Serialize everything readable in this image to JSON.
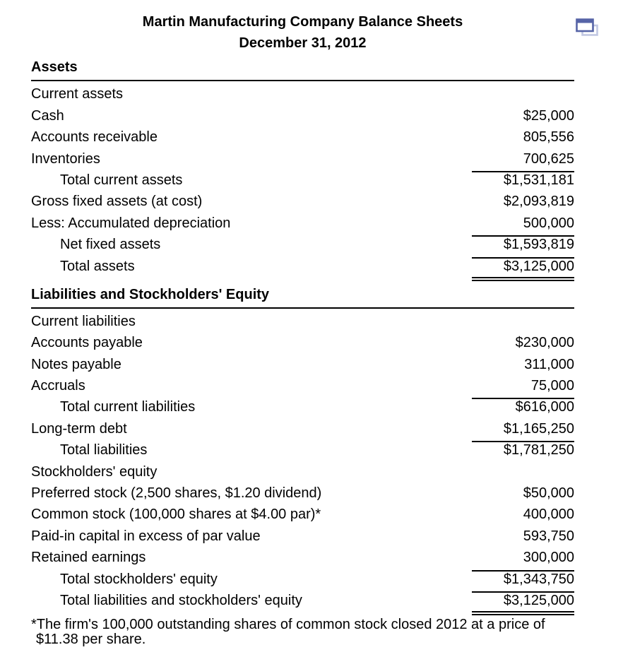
{
  "page": {
    "title": "Martin Manufacturing Company Balance Sheets",
    "subtitle": "December 31, 2012"
  },
  "icons": {
    "top_right": "copy-window-icon",
    "front_color": "#5664a7",
    "back_color": "#c2c8e2"
  },
  "sections": [
    {
      "heading": "Assets",
      "rows": [
        {
          "label": "Current assets",
          "value": "",
          "indent": false,
          "rule_above": false,
          "double_rule_below": false
        },
        {
          "label": "Cash",
          "value": "$25,000",
          "indent": false,
          "rule_above": false,
          "double_rule_below": false
        },
        {
          "label": "Accounts receivable",
          "value": "805,556",
          "indent": false,
          "rule_above": false,
          "double_rule_below": false
        },
        {
          "label": "Inventories",
          "value": "700,625",
          "indent": false,
          "rule_above": false,
          "double_rule_below": false
        },
        {
          "label": "Total current assets",
          "value": "$1,531,181",
          "indent": true,
          "rule_above": true,
          "double_rule_below": false
        },
        {
          "label": "Gross fixed assets (at cost)",
          "value": "$2,093,819",
          "indent": false,
          "rule_above": false,
          "double_rule_below": false
        },
        {
          "label": "Less: Accumulated depreciation",
          "value": "500,000",
          "indent": false,
          "rule_above": false,
          "double_rule_below": false
        },
        {
          "label": "Net fixed assets",
          "value": "$1,593,819",
          "indent": true,
          "rule_above": true,
          "double_rule_below": false
        },
        {
          "label": "Total assets",
          "value": "$3,125,000",
          "indent": true,
          "rule_above": true,
          "double_rule_below": true
        }
      ]
    },
    {
      "heading": "Liabilities and Stockholders' Equity",
      "rows": [
        {
          "label": "Current liabilities",
          "value": "",
          "indent": false,
          "rule_above": false,
          "double_rule_below": false
        },
        {
          "label": "Accounts payable",
          "value": "$230,000",
          "indent": false,
          "rule_above": false,
          "double_rule_below": false
        },
        {
          "label": "Notes payable",
          "value": "311,000",
          "indent": false,
          "rule_above": false,
          "double_rule_below": false
        },
        {
          "label": "Accruals",
          "value": "75,000",
          "indent": false,
          "rule_above": false,
          "double_rule_below": false
        },
        {
          "label": "Total current liabilities",
          "value": "$616,000",
          "indent": true,
          "rule_above": true,
          "double_rule_below": false
        },
        {
          "label": "Long-term debt",
          "value": "$1,165,250",
          "indent": false,
          "rule_above": false,
          "double_rule_below": false
        },
        {
          "label": "Total liabilities",
          "value": "$1,781,250",
          "indent": true,
          "rule_above": true,
          "double_rule_below": false
        },
        {
          "label": "Stockholders' equity",
          "value": "",
          "indent": false,
          "rule_above": false,
          "double_rule_below": false
        },
        {
          "label": "Preferred stock (2,500 shares, $1.20 dividend)",
          "value": "$50,000",
          "indent": false,
          "rule_above": false,
          "double_rule_below": false
        },
        {
          "label": "Common stock (100,000 shares at $4.00 par)*",
          "value": "400,000",
          "indent": false,
          "rule_above": false,
          "double_rule_below": false
        },
        {
          "label": "Paid-in capital in excess of par value",
          "value": "593,750",
          "indent": false,
          "rule_above": false,
          "double_rule_below": false
        },
        {
          "label": "Retained earnings",
          "value": "300,000",
          "indent": false,
          "rule_above": false,
          "double_rule_below": false
        },
        {
          "label": "Total stockholders' equity",
          "value": "$1,343,750",
          "indent": true,
          "rule_above": true,
          "double_rule_below": false
        },
        {
          "label": "Total liabilities and stockholders' equity",
          "value": "$3,125,000",
          "indent": true,
          "rule_above": true,
          "double_rule_below": true
        }
      ]
    }
  ],
  "footnote": "*The firm's 100,000 outstanding shares of common stock closed 2012 at a price of $11.38 per share."
}
